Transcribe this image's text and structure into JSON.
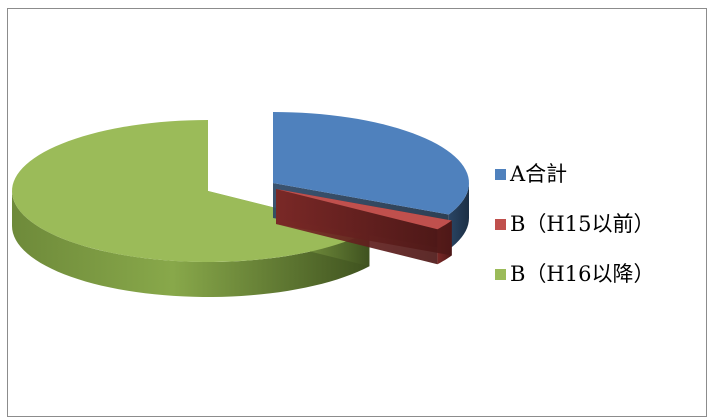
{
  "chart_data": {
    "type": "pie",
    "style": "3d-exploded",
    "title": "",
    "series": [
      {
        "name": "A合計",
        "value": 32.3,
        "color": "#4f81bd"
      },
      {
        "name": "B（H15以前）",
        "value": 2.3,
        "color": "#c0504d"
      },
      {
        "name": "B（H16以降）",
        "value": 65.4,
        "color": "#9bbb59"
      }
    ],
    "legend_position": "right",
    "units": "percent"
  }
}
